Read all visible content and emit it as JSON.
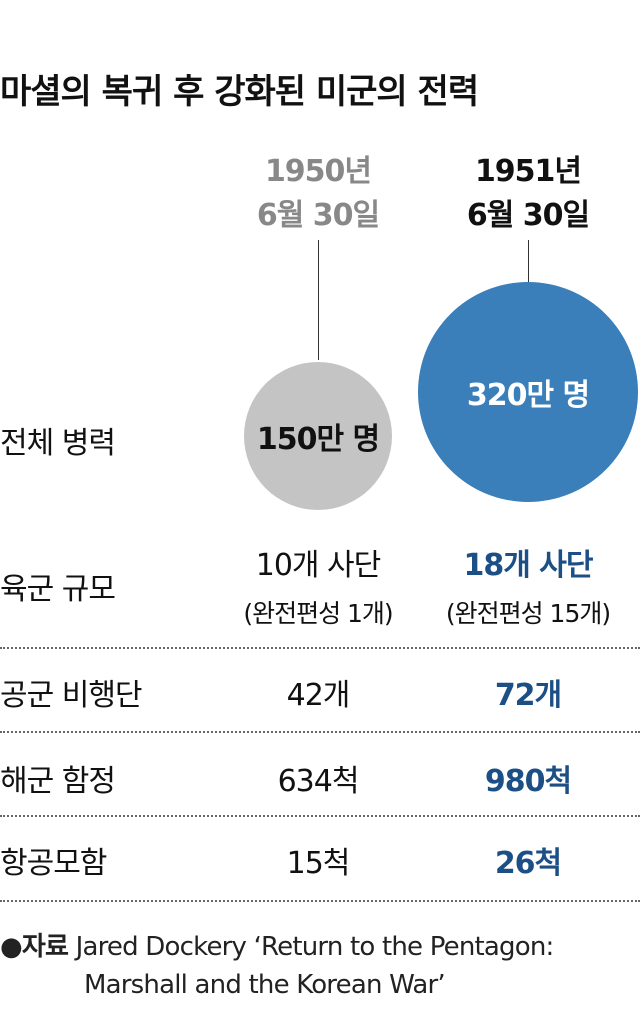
{
  "title": "마셜의 복귀 후 강화된 미군의 전력",
  "columns": [
    {
      "date_line1": "1950년",
      "date_line2": "6월 30일",
      "color": "#888888"
    },
    {
      "date_line1": "1951년",
      "date_line2": "6월 30일",
      "color": "#111111"
    }
  ],
  "chart_data": {
    "type": "table",
    "colors": {
      "old": "#c4c4c4",
      "new": "#3a7fba",
      "highlight": "#1c4f86"
    },
    "columns": [
      "1950년 6월 30일",
      "1951년 6월 30일"
    ],
    "rows": [
      {
        "label": "전체 병력",
        "values": [
          "150만 명",
          "320만 명"
        ],
        "numeric": [
          1500000,
          3200000
        ]
      },
      {
        "label": "육군 규모",
        "values": [
          "10개 사단",
          "18개 사단"
        ],
        "notes": [
          "(완전편성 1개)",
          "(완전편성 15개)"
        ],
        "numeric": [
          10,
          18
        ]
      },
      {
        "label": "공군 비행단",
        "values": [
          "42개",
          "72개"
        ],
        "numeric": [
          42,
          72
        ]
      },
      {
        "label": "해군 함정",
        "values": [
          "634척",
          "980척"
        ],
        "numeric": [
          634,
          980
        ]
      },
      {
        "label": "항공모함",
        "values": [
          "15척",
          "26척"
        ],
        "numeric": [
          15,
          26
        ]
      }
    ]
  },
  "source": {
    "bullet": "●",
    "label": "자료",
    "line1": "Jared Dockery ‘Return to the Pentagon:",
    "line2": "Marshall and the Korean War’"
  }
}
